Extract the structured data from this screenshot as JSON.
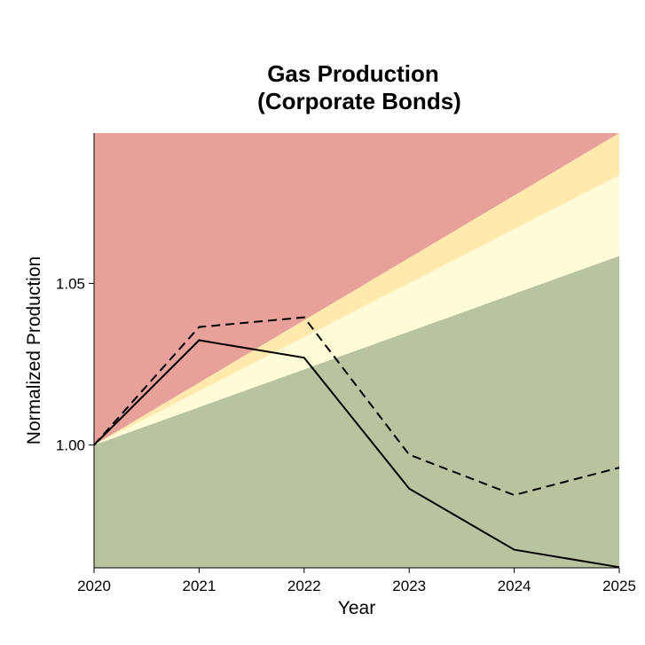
{
  "chart_data": {
    "type": "line",
    "title": [
      "Gas Production",
      "(Corporate Bonds)"
    ],
    "xlabel": "Year",
    "ylabel": "Normalized Production",
    "x": [
      2020,
      2021,
      2022,
      2023,
      2024,
      2025
    ],
    "x_tick_labels": [
      "2020",
      "2021",
      "2022",
      "2023",
      "2024",
      "2025"
    ],
    "y_ticks": [
      1.0,
      1.05
    ],
    "y_tick_labels": [
      "1.00",
      "1.05"
    ],
    "xlim": [
      2020,
      2025
    ],
    "ylim": [
      0.962,
      1.0965
    ],
    "series": [
      {
        "style": "solid",
        "color": "#000000",
        "values": [
          1.0,
          1.0324,
          1.027,
          0.9865,
          0.9676,
          0.9622
        ]
      },
      {
        "style": "dashed",
        "color": "#000000",
        "values": [
          1.0,
          1.0365,
          1.0395,
          0.997,
          0.9845,
          0.993
        ]
      }
    ],
    "bands": [
      {
        "color": "#b8c3a0",
        "upper_end": 1.0585
      },
      {
        "color": "#fffbd6",
        "upper_end": 1.0835
      },
      {
        "color": "#ffe9ad",
        "upper_end": 1.0965
      },
      {
        "color": "#e8a09b",
        "upper_end": null
      }
    ],
    "band_start": 1.0,
    "grid": false,
    "legend": "none"
  }
}
